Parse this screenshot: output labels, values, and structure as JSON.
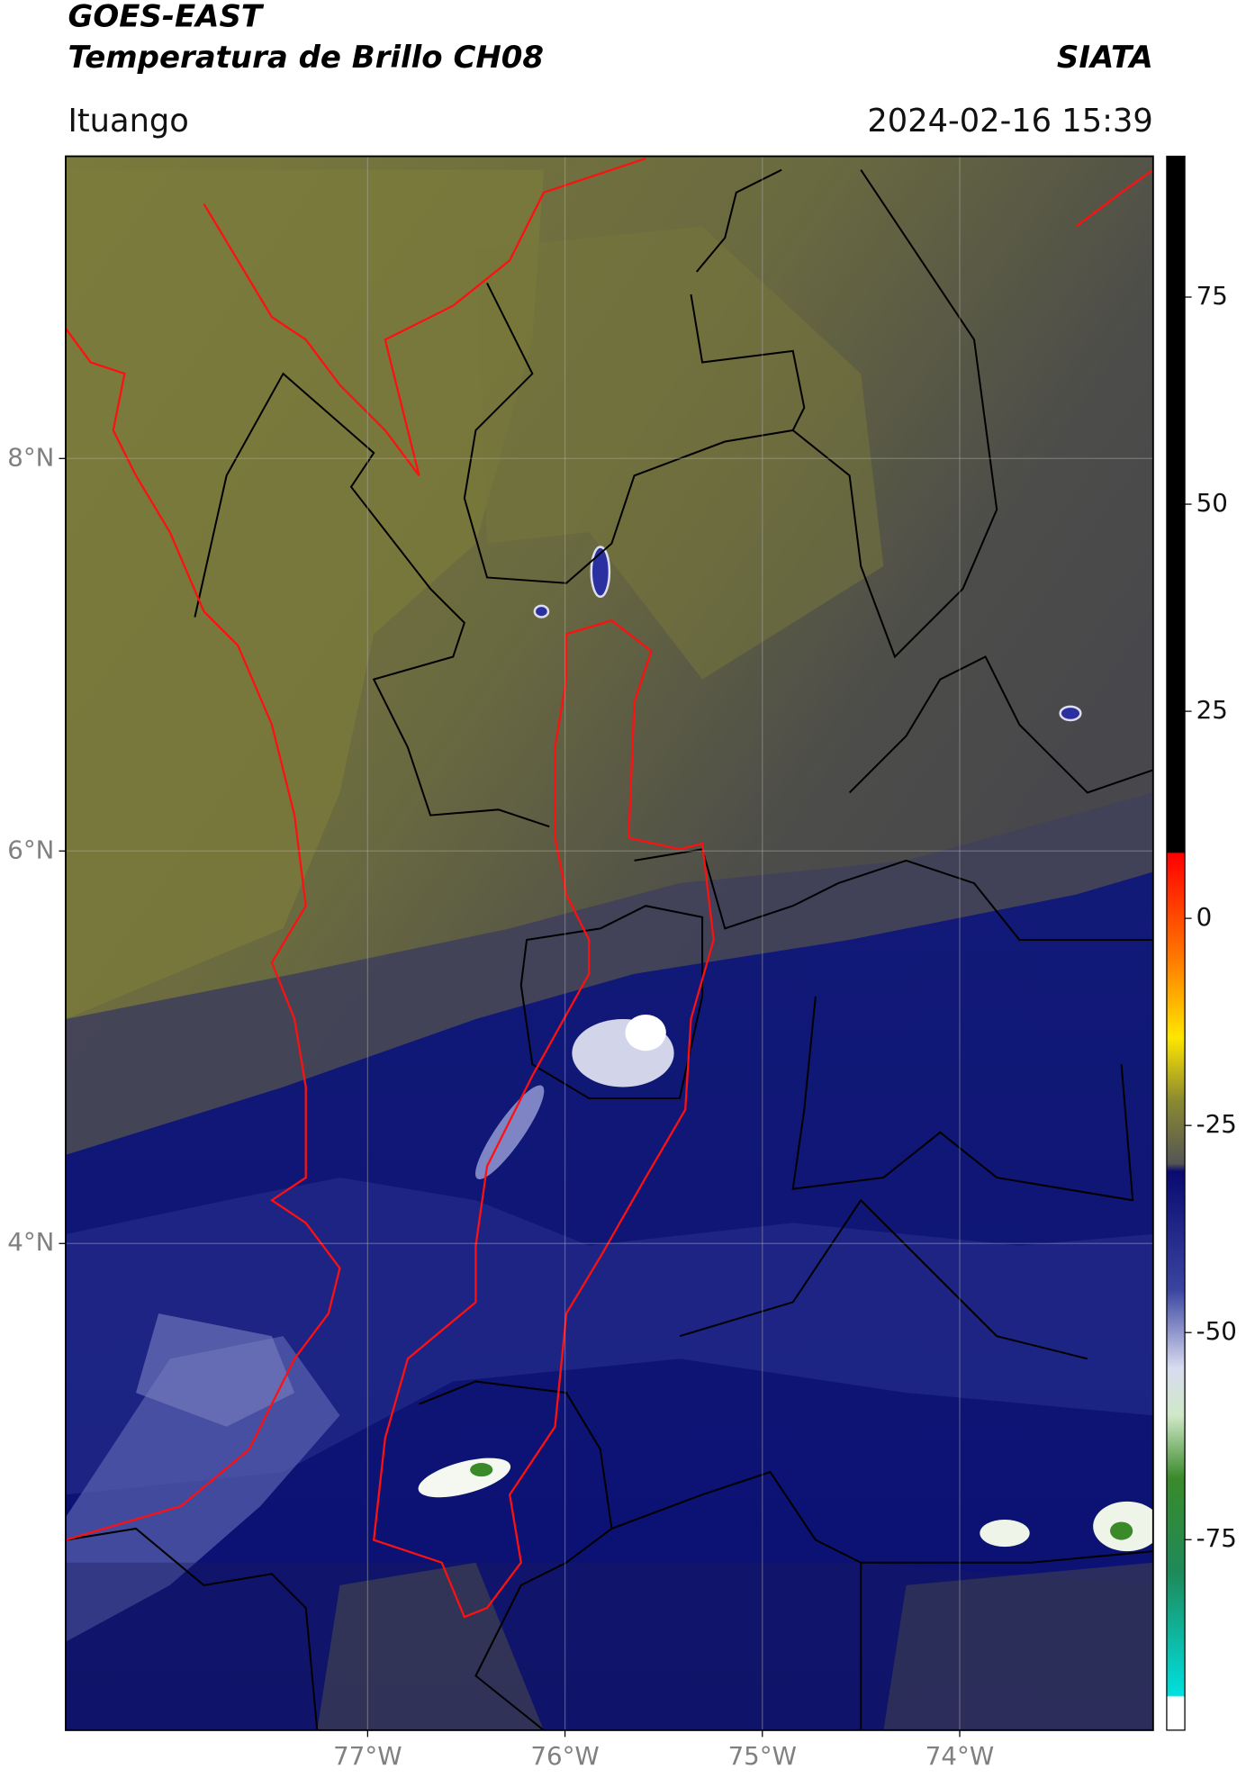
{
  "header": {
    "title": "GOES-EAST",
    "subtitle": "Temperatura de Brillo CH08",
    "source": "SIATA",
    "location": "Ituango",
    "datetime": "2024-02-16 15:39"
  },
  "map": {
    "xlim": [
      -78.53,
      -73.02
    ],
    "ylim": [
      1.52,
      9.54
    ],
    "xticks": [
      {
        "value": -77,
        "label": "77°W"
      },
      {
        "value": -76,
        "label": "76°W"
      },
      {
        "value": -75,
        "label": "75°W"
      },
      {
        "value": -74,
        "label": "74°W"
      }
    ],
    "yticks": [
      {
        "value": 8,
        "label": "8°N"
      },
      {
        "value": 6,
        "label": "6°N"
      },
      {
        "value": 4,
        "label": "4°N"
      }
    ],
    "grid": true
  },
  "colorbar": {
    "lim": [
      -98,
      92
    ],
    "ticks": [
      75,
      50,
      25,
      0,
      -25,
      -50,
      -75
    ]
  }
}
